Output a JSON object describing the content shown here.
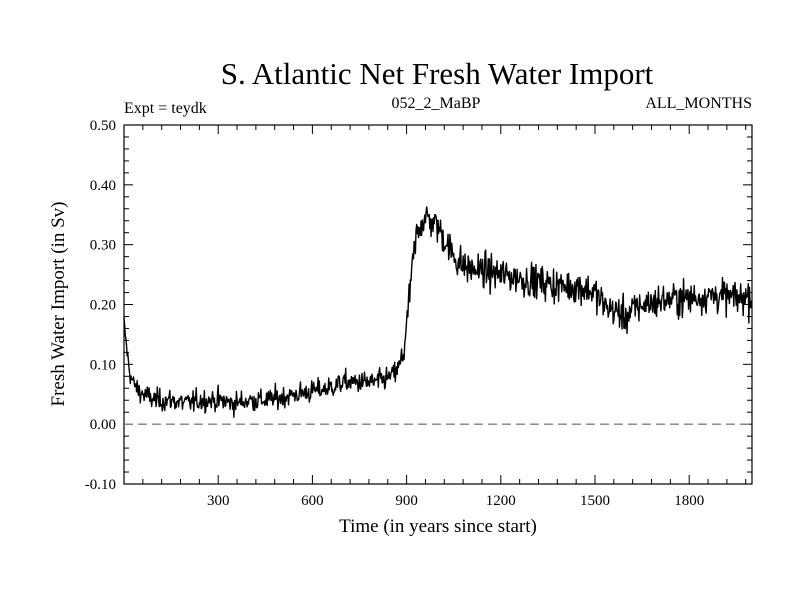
{
  "chart_data": {
    "type": "line",
    "title": "S. Atlantic Net Fresh Water Import",
    "subtitle_left": "Expt = teydk",
    "subtitle_center": "052_2_MaBP",
    "subtitle_right": "ALL_MONTHS",
    "xlabel": "Time (in years since start)",
    "ylabel": "Fresh Water Import (in Sv)",
    "xlim": [
      0,
      2000
    ],
    "ylim": [
      -0.1,
      0.5
    ],
    "x_ticks": [
      300,
      600,
      900,
      1200,
      1500,
      1800
    ],
    "x_tick_labels": [
      "300",
      "600",
      "900",
      "1200",
      "1500",
      "1800"
    ],
    "y_ticks": [
      -0.1,
      0.0,
      0.1,
      0.2,
      0.3,
      0.4,
      0.5
    ],
    "y_tick_labels": [
      "-0.10",
      "0.00",
      "0.10",
      "0.20",
      "0.30",
      "0.40",
      "0.50"
    ],
    "reference_line": {
      "y": 0.0,
      "style": "dashed",
      "color": "#808080"
    },
    "line_color": "#000000",
    "series": [
      {
        "name": "Net Fresh Water Import",
        "x": [
          0,
          10,
          20,
          40,
          60,
          100,
          150,
          200,
          250,
          300,
          350,
          400,
          450,
          500,
          550,
          600,
          650,
          700,
          750,
          800,
          830,
          850,
          870,
          880,
          890,
          900,
          910,
          920,
          930,
          940,
          950,
          960,
          980,
          1000,
          1020,
          1040,
          1060,
          1080,
          1100,
          1150,
          1200,
          1250,
          1300,
          1350,
          1400,
          1450,
          1500,
          1520,
          1540,
          1560,
          1580,
          1600,
          1620,
          1650,
          1700,
          1750,
          1800,
          1850,
          1900,
          1950,
          2000
        ],
        "y": [
          0.17,
          0.12,
          0.08,
          0.06,
          0.05,
          0.04,
          0.04,
          0.035,
          0.04,
          0.04,
          0.035,
          0.04,
          0.04,
          0.045,
          0.05,
          0.055,
          0.06,
          0.07,
          0.07,
          0.07,
          0.075,
          0.08,
          0.09,
          0.1,
          0.12,
          0.16,
          0.22,
          0.27,
          0.31,
          0.33,
          0.34,
          0.345,
          0.34,
          0.33,
          0.31,
          0.29,
          0.275,
          0.265,
          0.26,
          0.255,
          0.25,
          0.245,
          0.24,
          0.235,
          0.23,
          0.23,
          0.22,
          0.205,
          0.195,
          0.19,
          0.185,
          0.18,
          0.19,
          0.2,
          0.205,
          0.21,
          0.21,
          0.215,
          0.215,
          0.21,
          0.215
        ]
      }
    ]
  }
}
